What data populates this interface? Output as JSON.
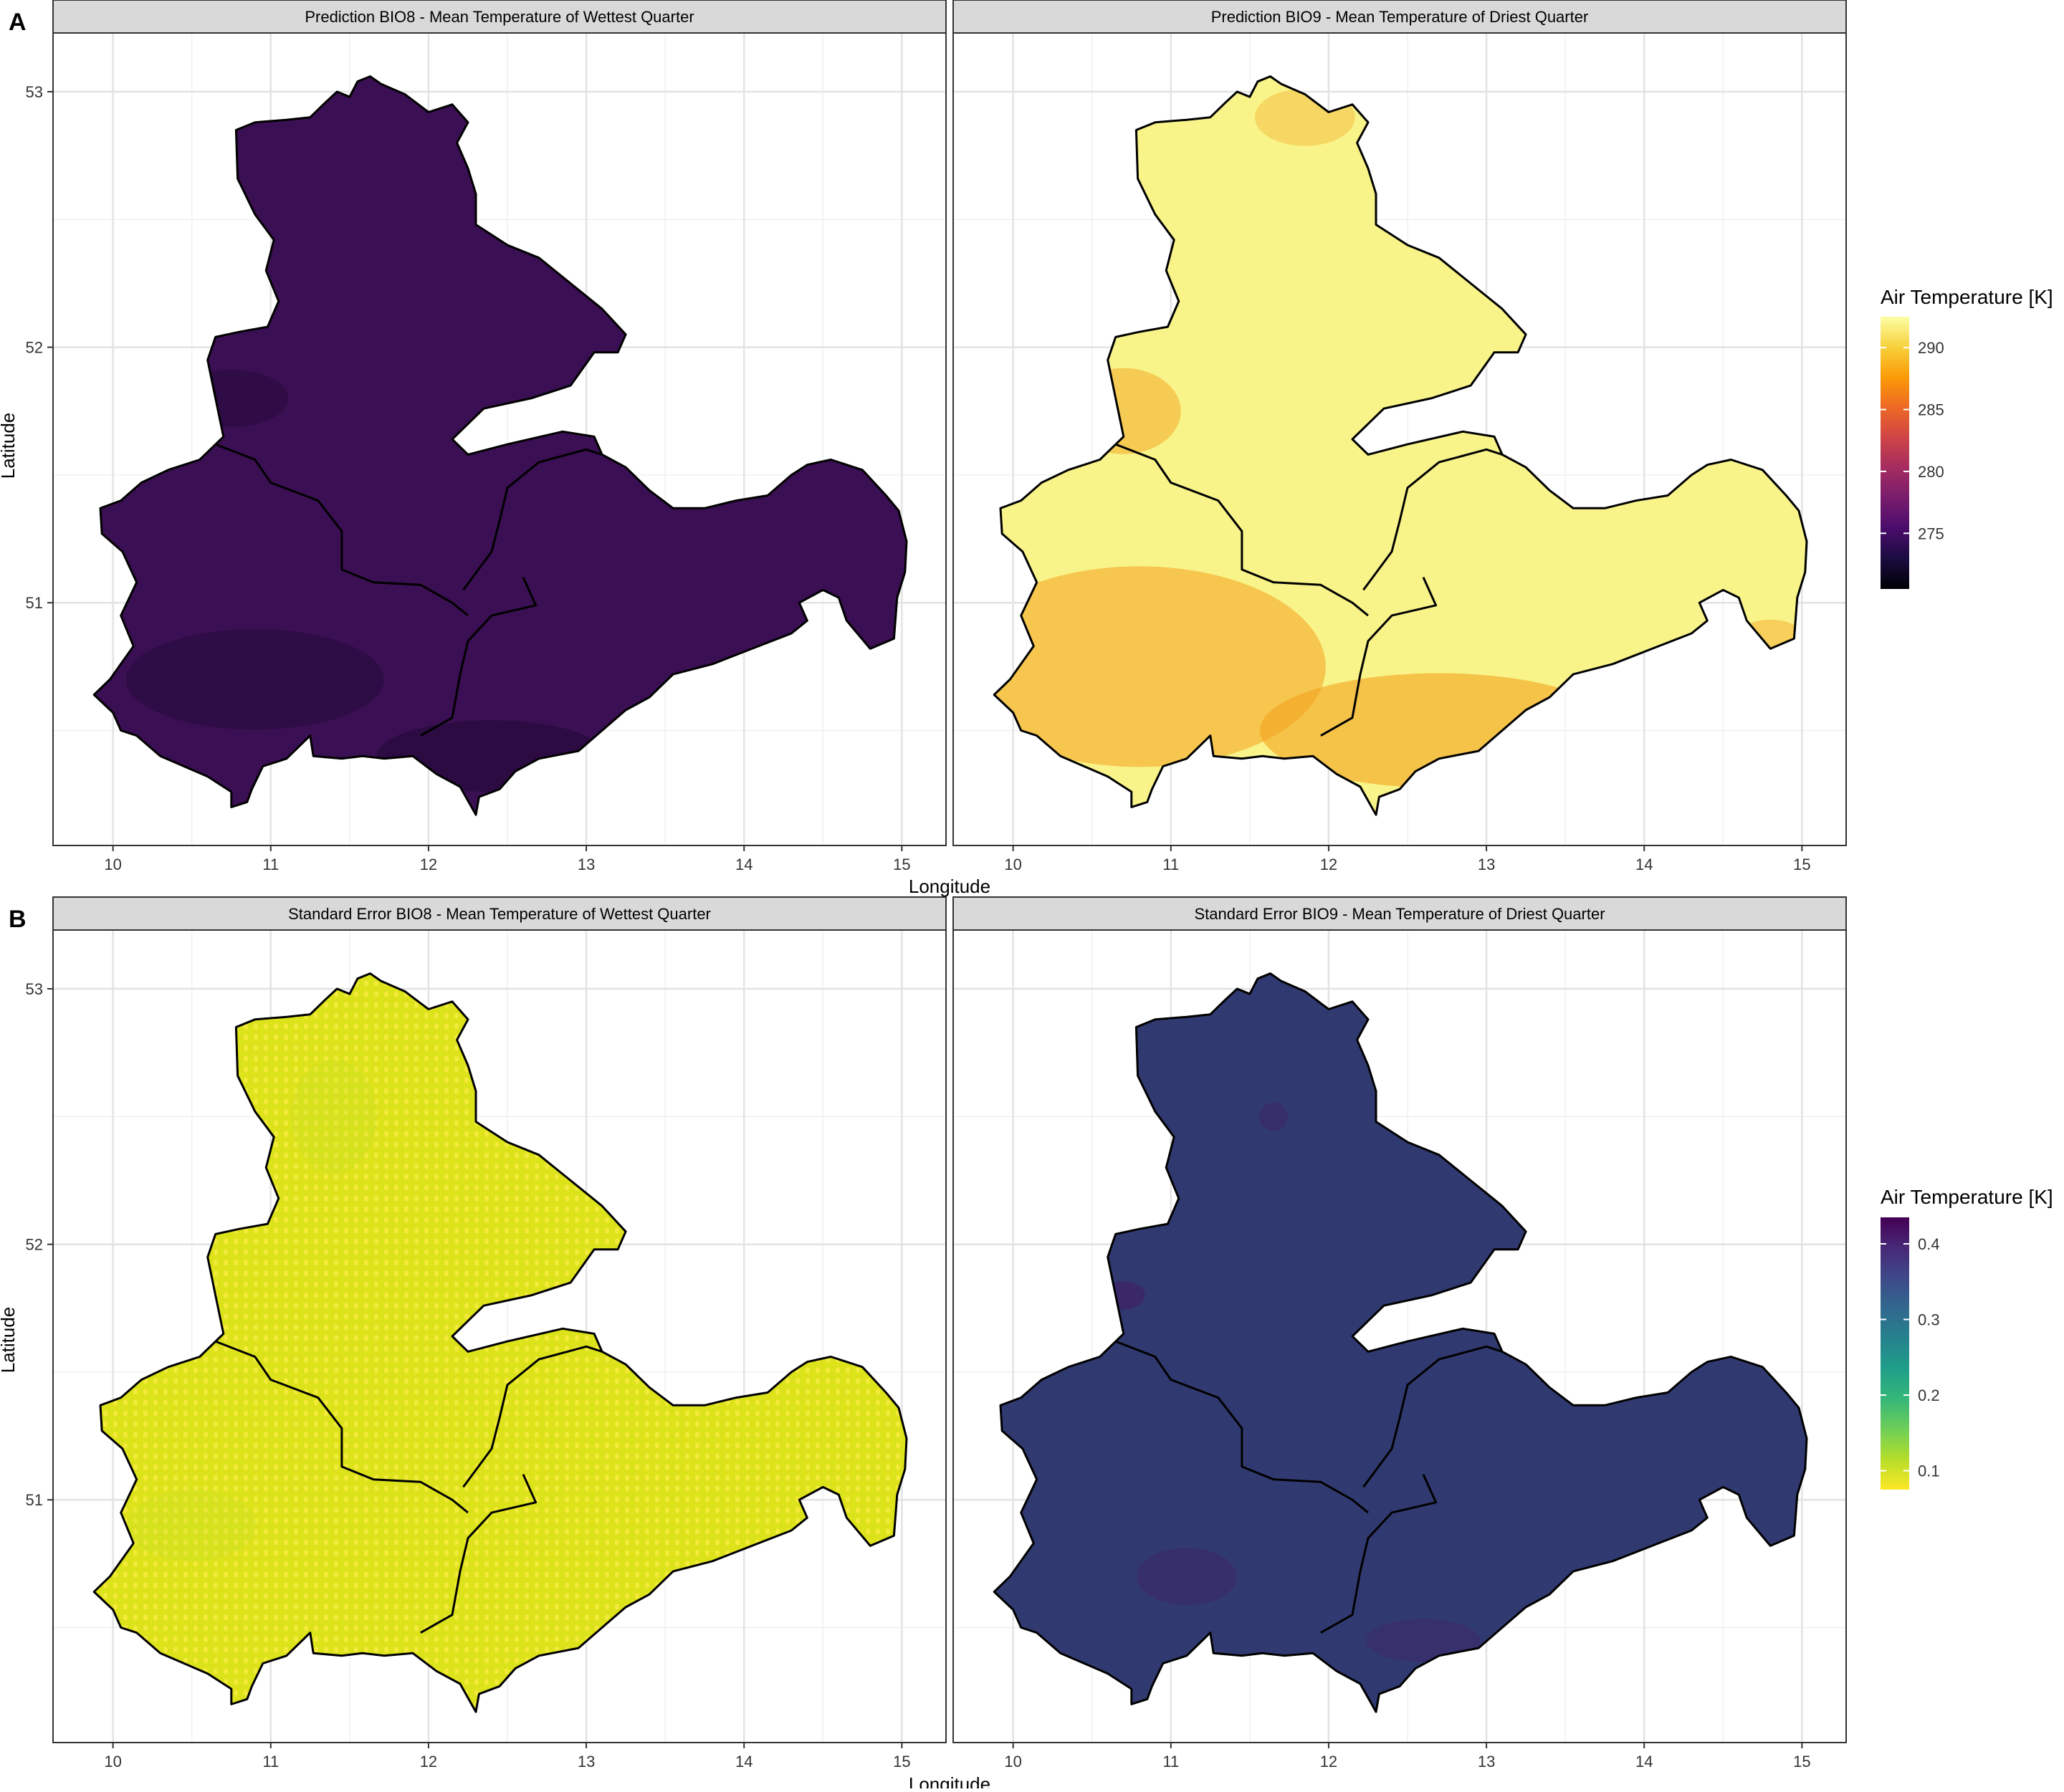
{
  "figure": {
    "section_a_label": "A",
    "section_b_label": "B",
    "x_axis_title": "Longitude",
    "y_axis_title": "Latitude"
  },
  "axes": {
    "x_ticks": [
      "10",
      "11",
      "12",
      "13",
      "14",
      "15"
    ],
    "y_ticks": [
      "53",
      "52",
      "51"
    ],
    "x_range": [
      9.62,
      15.28
    ],
    "y_range": [
      50.05,
      53.23
    ]
  },
  "panels": [
    {
      "id": "a-left",
      "title": "Prediction BIO8 - Mean Temperature of Wettest Quarter",
      "fill": "#3b0f53",
      "shade": "#260a3c",
      "pattern": "smooth"
    },
    {
      "id": "a-right",
      "title": "Prediction BIO9 - Mean Temperature of Driest Quarter",
      "fill": "#f9f48a",
      "shade": "#f4a11e",
      "pattern": "smooth"
    },
    {
      "id": "b-left",
      "title": "Standard Error BIO8 - Mean Temperature of Wettest Quarter",
      "fill": "#dde31b",
      "shade": "#c8de2a",
      "pattern": "dotted"
    },
    {
      "id": "b-right",
      "title": "Standard Error BIO9 - Mean Temperature of Driest Quarter",
      "fill": "#313a70",
      "shade": "#3e2468",
      "pattern": "smooth"
    }
  ],
  "legends": [
    {
      "id": "legend-a",
      "title": "Air Temperature [K]",
      "palette": "inferno",
      "range": [
        270.5,
        292.5
      ],
      "ticks": [
        {
          "label": "290",
          "value": 290
        },
        {
          "label": "285",
          "value": 285
        },
        {
          "label": "280",
          "value": 280
        },
        {
          "label": "275",
          "value": 275
        }
      ],
      "colors": [
        "#fcffa4",
        "#f7d13d",
        "#fb9b06",
        "#ed6925",
        "#cf4446",
        "#a52c60",
        "#781c6d",
        "#4a0c6b",
        "#1b0c41",
        "#000004"
      ]
    },
    {
      "id": "legend-b",
      "title": "Air Temperature [K]",
      "palette": "viridis",
      "range": [
        0.075,
        0.435
      ],
      "ticks": [
        {
          "label": "0.4",
          "value": 0.4
        },
        {
          "label": "0.3",
          "value": 0.3
        },
        {
          "label": "0.2",
          "value": 0.2
        },
        {
          "label": "0.1",
          "value": 0.1
        }
      ],
      "colors": [
        "#440154",
        "#482878",
        "#3e4989",
        "#31688e",
        "#26828e",
        "#1f9e89",
        "#35b779",
        "#6ece58",
        "#b5de2b",
        "#fde725"
      ]
    }
  ]
}
